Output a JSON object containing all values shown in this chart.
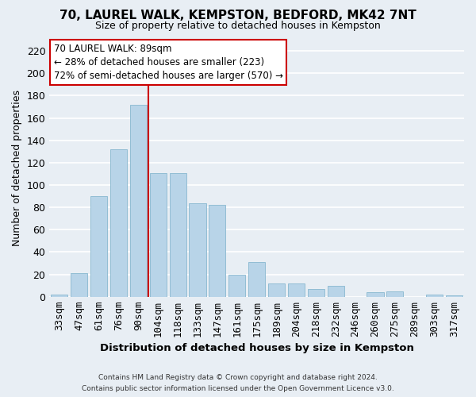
{
  "title": "70, LAUREL WALK, KEMPSTON, BEDFORD, MK42 7NT",
  "subtitle": "Size of property relative to detached houses in Kempston",
  "xlabel": "Distribution of detached houses by size in Kempston",
  "ylabel": "Number of detached properties",
  "bar_labels": [
    "33sqm",
    "47sqm",
    "61sqm",
    "76sqm",
    "90sqm",
    "104sqm",
    "118sqm",
    "133sqm",
    "147sqm",
    "161sqm",
    "175sqm",
    "189sqm",
    "204sqm",
    "218sqm",
    "232sqm",
    "246sqm",
    "260sqm",
    "275sqm",
    "289sqm",
    "303sqm",
    "317sqm"
  ],
  "bar_values": [
    2,
    21,
    90,
    132,
    172,
    111,
    111,
    84,
    82,
    20,
    31,
    12,
    12,
    7,
    10,
    0,
    4,
    5,
    0,
    2,
    1
  ],
  "bar_color": "#b8d4e8",
  "bar_edge_color": "#92bdd4",
  "vline_color": "#cc0000",
  "annotation_box_color": "#ffffff",
  "annotation_box_edge": "#cc0000",
  "annotation_title": "70 LAUREL WALK: 89sqm",
  "annotation_line1": "← 28% of detached houses are smaller (223)",
  "annotation_line2": "72% of semi-detached houses are larger (570) →",
  "footer_line1": "Contains HM Land Registry data © Crown copyright and database right 2024.",
  "footer_line2": "Contains public sector information licensed under the Open Government Licence v3.0.",
  "ylim": [
    0,
    230
  ],
  "yticks": [
    0,
    20,
    40,
    60,
    80,
    100,
    120,
    140,
    160,
    180,
    200,
    220
  ],
  "background_color": "#e8eef4",
  "grid_color": "#ffffff",
  "vline_x_index": 4.5
}
